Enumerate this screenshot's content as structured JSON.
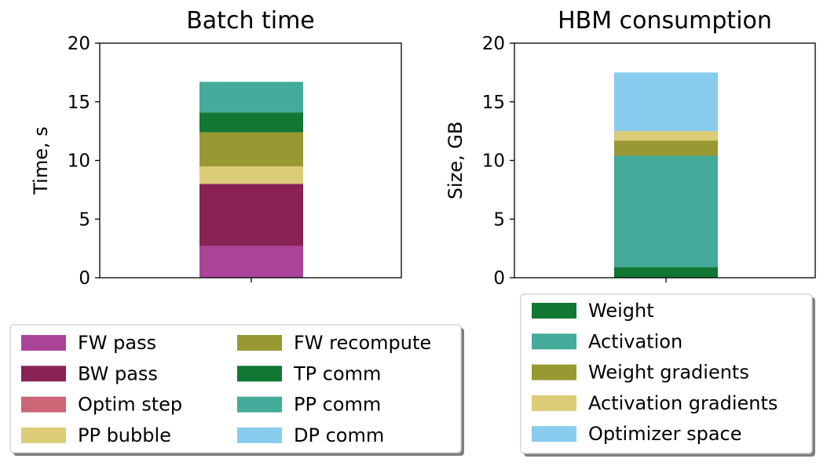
{
  "chart_data": [
    {
      "type": "bar",
      "stacked": true,
      "title": "Batch time",
      "xlabel": "",
      "ylabel": "Time, s",
      "ylim": [
        0,
        20
      ],
      "yticks": [
        "0",
        "5",
        "10",
        "15",
        "20"
      ],
      "grid": false,
      "legend_position": "below",
      "categories": [
        ""
      ],
      "series": [
        {
          "name": "FW pass",
          "color": "#aa4499",
          "values": [
            2.7
          ]
        },
        {
          "name": "BW pass",
          "color": "#882255",
          "values": [
            5.3
          ]
        },
        {
          "name": "Optim step",
          "color": "#cc6677",
          "values": [
            0.0
          ]
        },
        {
          "name": "PP bubble",
          "color": "#ddcc77",
          "values": [
            1.5
          ]
        },
        {
          "name": "FW recompute",
          "color": "#999933",
          "values": [
            2.9
          ]
        },
        {
          "name": "TP comm",
          "color": "#117733",
          "values": [
            1.7
          ]
        },
        {
          "name": "PP comm",
          "color": "#44aa99",
          "values": [
            2.6
          ]
        },
        {
          "name": "DP comm",
          "color": "#88ccee",
          "values": [
            0.0
          ]
        }
      ]
    },
    {
      "type": "bar",
      "stacked": true,
      "title": "HBM consumption",
      "xlabel": "",
      "ylabel": "Size, GB",
      "ylim": [
        0,
        20
      ],
      "yticks": [
        "0",
        "5",
        "10",
        "15",
        "20"
      ],
      "grid": false,
      "legend_position": "below",
      "categories": [
        ""
      ],
      "series": [
        {
          "name": "Weight",
          "color": "#117733",
          "values": [
            0.9
          ]
        },
        {
          "name": "Activation",
          "color": "#44aa99",
          "values": [
            9.5
          ]
        },
        {
          "name": "Weight gradients",
          "color": "#999933",
          "values": [
            1.3
          ]
        },
        {
          "name": "Activation gradients",
          "color": "#ddcc77",
          "values": [
            0.8
          ]
        },
        {
          "name": "Optimizer space",
          "color": "#88ccee",
          "values": [
            5.0
          ]
        }
      ]
    }
  ]
}
